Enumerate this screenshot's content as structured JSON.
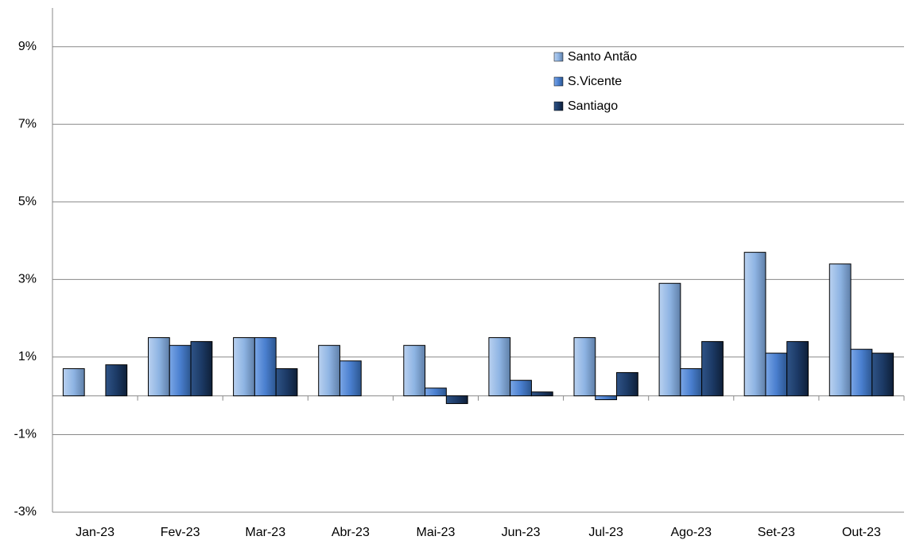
{
  "chart_data": {
    "type": "bar",
    "categories": [
      "Jan-23",
      "Fev-23",
      "Mar-23",
      "Abr-23",
      "Mai-23",
      "Jun-23",
      "Jul-23",
      "Ago-23",
      "Set-23",
      "Out-23"
    ],
    "series": [
      {
        "name": "Santo Antão",
        "color": "#8eb4e3",
        "values": [
          0.7,
          1.5,
          1.5,
          1.3,
          1.3,
          1.5,
          1.5,
          2.9,
          3.7,
          3.4
        ]
      },
      {
        "name": "S.Vicente",
        "color": "#4a7fcf",
        "values": [
          0,
          1.3,
          1.5,
          0.9,
          0.2,
          0.4,
          -0.1,
          0.7,
          1.1,
          1.2
        ]
      },
      {
        "name": "Santiago",
        "color": "#1c3a66",
        "values": [
          0.8,
          1.4,
          0.7,
          0,
          -0.2,
          0.1,
          0.6,
          1.4,
          1.4,
          1.1
        ]
      }
    ],
    "ylim": [
      -3,
      10
    ],
    "yticks": [
      {
        "value": -3,
        "label": "-3%"
      },
      {
        "value": -1,
        "label": "-1%"
      },
      {
        "value": 1,
        "label": "1%"
      },
      {
        "value": 3,
        "label": "3%"
      },
      {
        "value": 5,
        "label": "5%"
      },
      {
        "value": 7,
        "label": "7%"
      },
      {
        "value": 9,
        "label": "9%"
      }
    ],
    "grid": true
  }
}
